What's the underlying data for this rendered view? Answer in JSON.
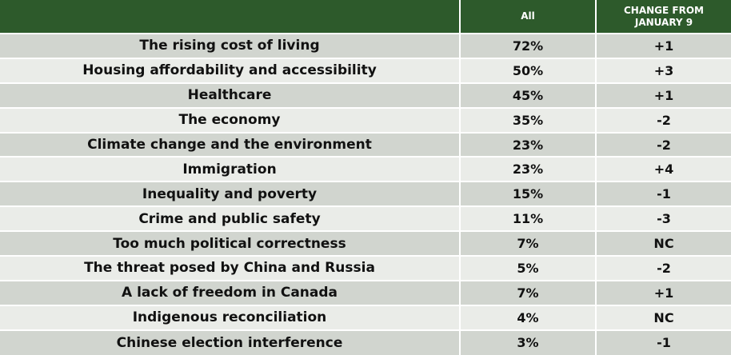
{
  "chart_data": {
    "type": "table",
    "columns": [
      "",
      "All",
      "CHANGE FROM JANUARY 9"
    ],
    "header": {
      "issue": "",
      "all": "All",
      "change_line1": "CHANGE FROM",
      "change_line2": "JANUARY 9"
    },
    "rows": [
      {
        "issue": "The rising cost of living",
        "all": "72%",
        "change": "+1"
      },
      {
        "issue": "Housing affordability and accessibility",
        "all": "50%",
        "change": "+3"
      },
      {
        "issue": "Healthcare",
        "all": "45%",
        "change": "+1"
      },
      {
        "issue": "The economy",
        "all": "35%",
        "change": "-2"
      },
      {
        "issue": "Climate change and the environment",
        "all": "23%",
        "change": "-2"
      },
      {
        "issue": "Immigration",
        "all": "23%",
        "change": "+4"
      },
      {
        "issue": "Inequality and poverty",
        "all": "15%",
        "change": "-1"
      },
      {
        "issue": "Crime and public safety",
        "all": "11%",
        "change": "-3"
      },
      {
        "issue": "Too much political correctness",
        "all": "7%",
        "change": "NC"
      },
      {
        "issue": "The threat posed by China and Russia",
        "all": "5%",
        "change": "-2"
      },
      {
        "issue": "A lack of freedom in Canada",
        "all": "7%",
        "change": "+1"
      },
      {
        "issue": "Indigenous reconciliation",
        "all": "4%",
        "change": "NC"
      },
      {
        "issue": "Chinese election interference",
        "all": "3%",
        "change": "-1"
      }
    ]
  },
  "colors": {
    "header_bg": "#2d5a2b",
    "header_text": "#ffffff",
    "row_odd": "#d1d5cf",
    "row_even": "#eaece8",
    "text": "#111111"
  }
}
